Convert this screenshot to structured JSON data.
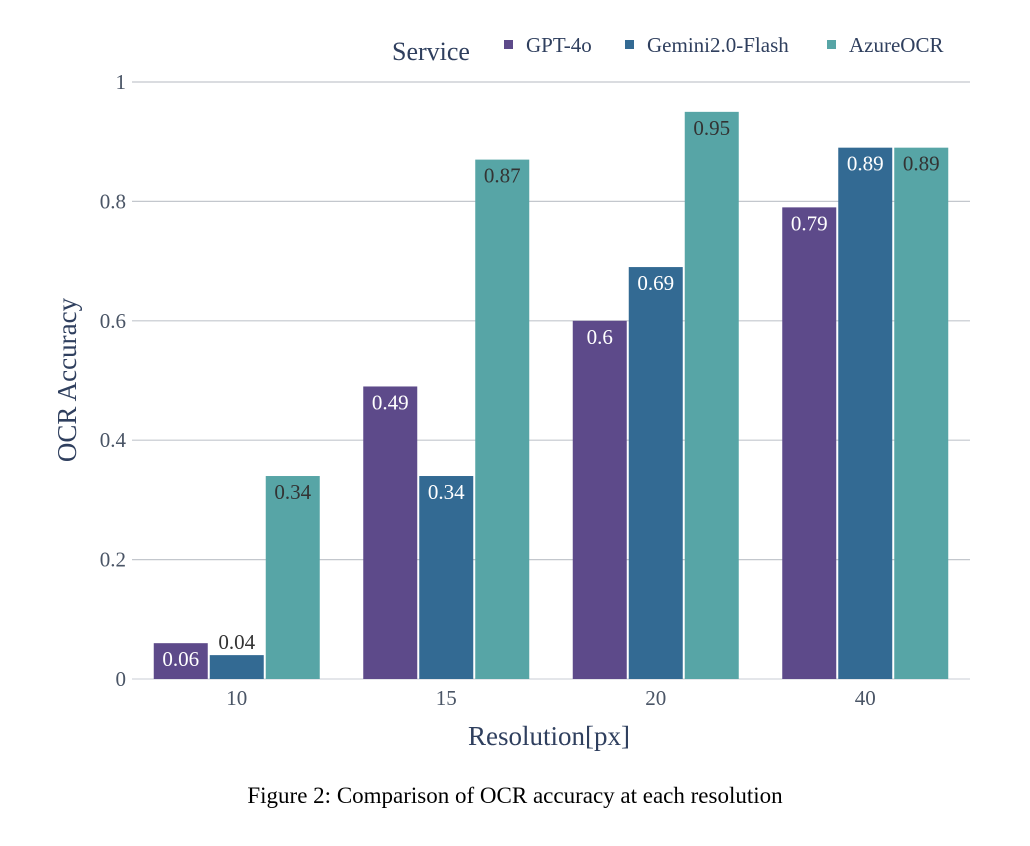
{
  "caption": "Figure 2: Comparison of OCR accuracy at each resolution",
  "legend": {
    "title": "Service",
    "placement": "top-right",
    "items": [
      {
        "label": "GPT-4o",
        "color": "#5d4a8a"
      },
      {
        "label": "Gemini2.0-Flash",
        "color": "#336a93"
      },
      {
        "label": "AzureOCR",
        "color": "#57a5a6"
      }
    ]
  },
  "chart_data": {
    "type": "bar",
    "title": "",
    "xlabel": "Resolution[px]",
    "ylabel": "OCR Accuracy",
    "categories": [
      "10",
      "15",
      "20",
      "40"
    ],
    "ylim": [
      0,
      1
    ],
    "yticks": [
      "0",
      "0.2",
      "0.4",
      "0.6",
      "0.8",
      "1"
    ],
    "grid": true,
    "series": [
      {
        "name": "GPT-4o",
        "color": "#5d4a8a",
        "values": [
          0.06,
          0.49,
          0.6,
          0.79
        ],
        "labels": [
          "0.06",
          "0.49",
          "0.6",
          "0.79"
        ]
      },
      {
        "name": "Gemini2.0-Flash",
        "color": "#336a93",
        "values": [
          0.04,
          0.34,
          0.69,
          0.89
        ],
        "labels": [
          "0.04",
          "0.34",
          "0.69",
          "0.89"
        ]
      },
      {
        "name": "AzureOCR",
        "color": "#57a5a6",
        "values": [
          0.34,
          0.87,
          0.95,
          0.89
        ],
        "labels": [
          "0.34",
          "0.87",
          "0.95",
          "0.89"
        ]
      }
    ]
  }
}
